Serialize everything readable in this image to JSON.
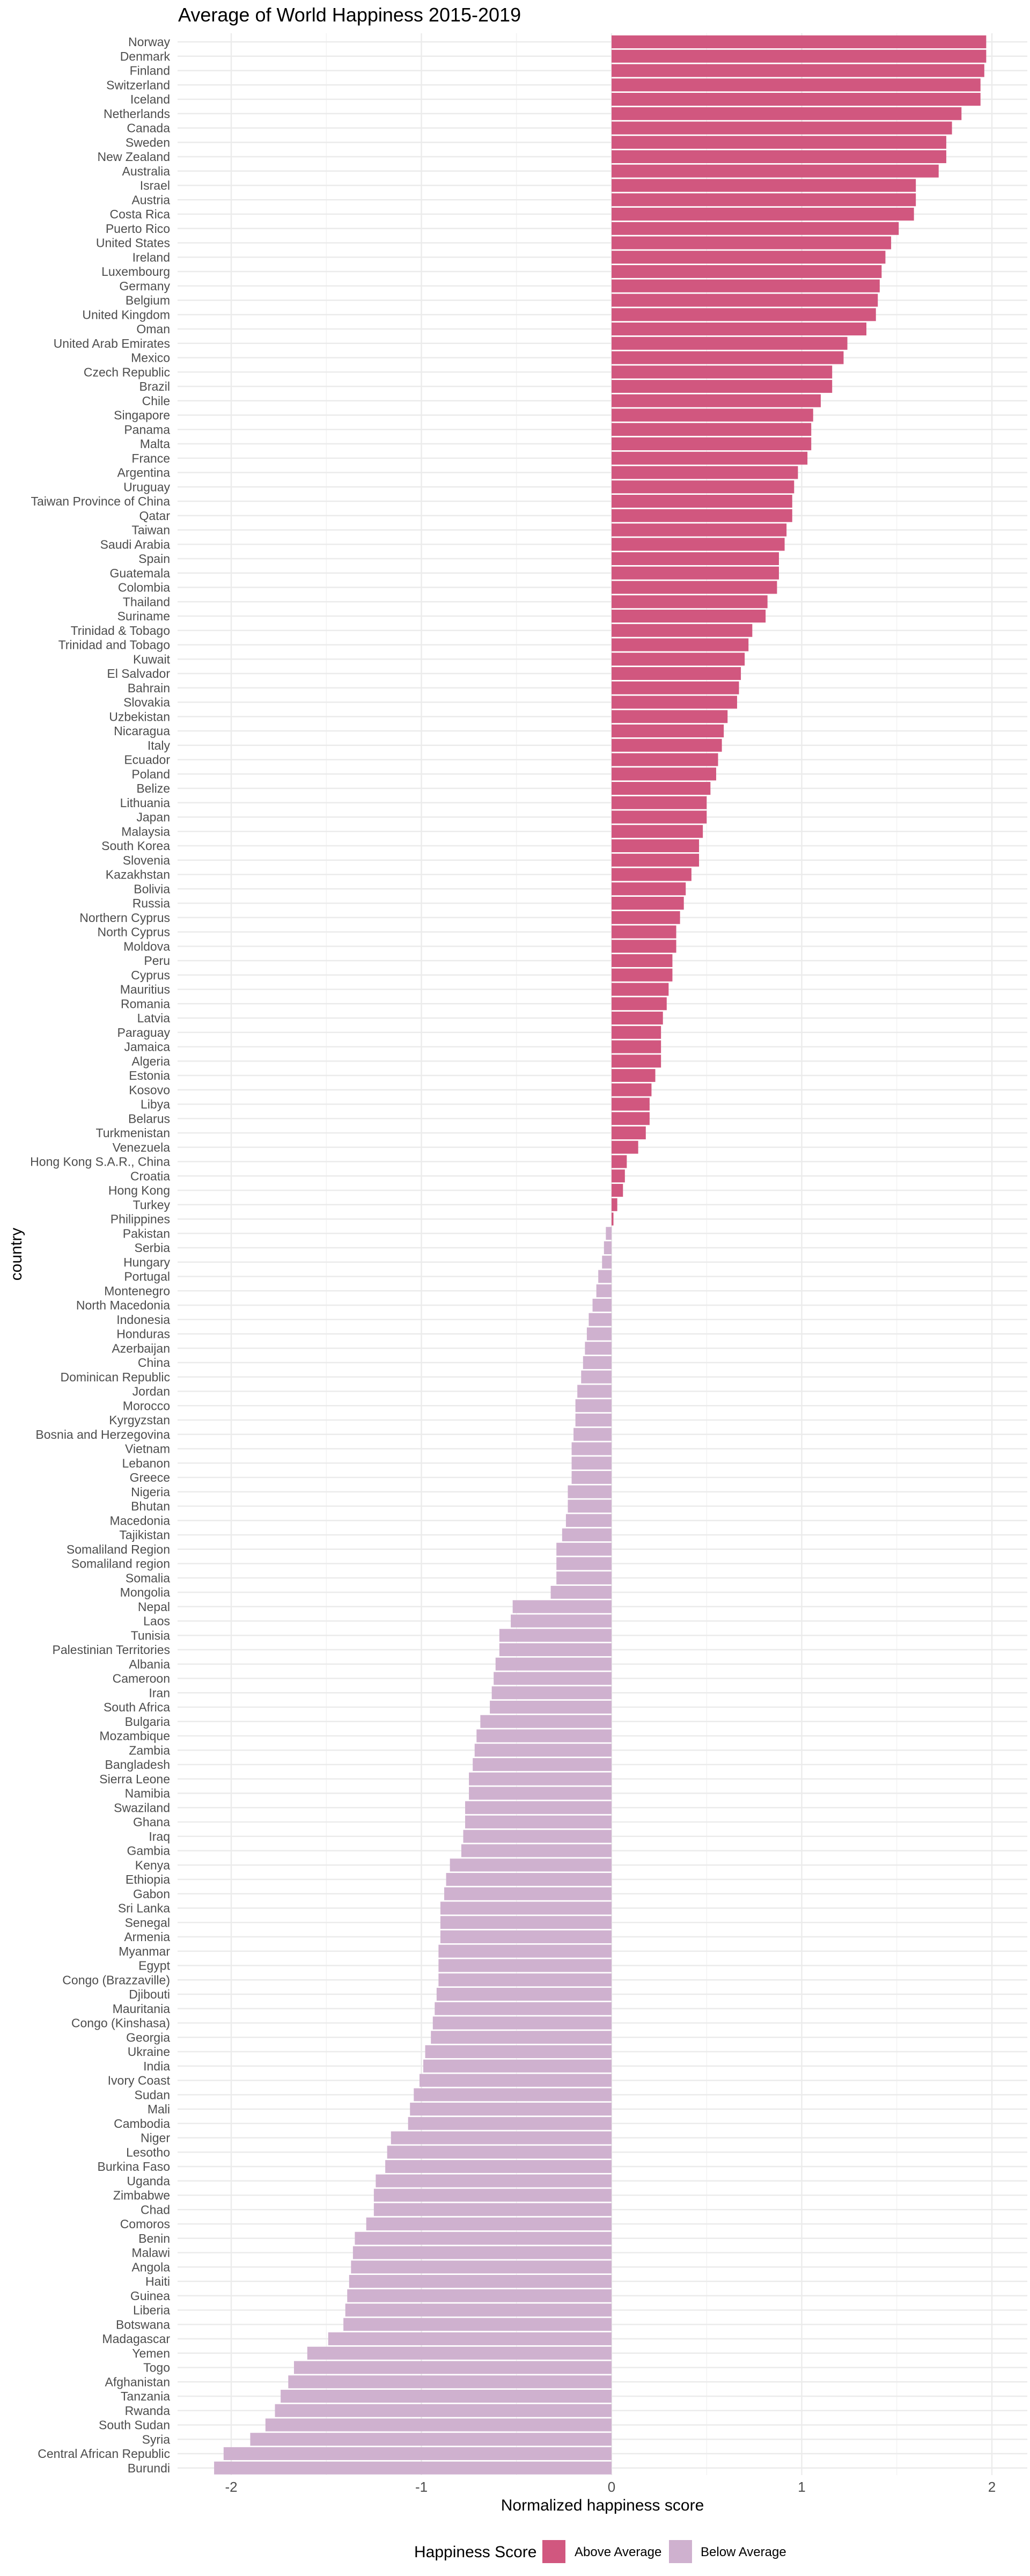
{
  "chart_data": {
    "type": "bar",
    "orientation": "horizontal",
    "title": "Average of World Happiness 2015-2019",
    "xlabel": "Normalized happiness score",
    "ylabel": "country",
    "xlim": [
      -2.28,
      2.19
    ],
    "xticks": [
      -2,
      -1,
      0,
      1,
      2
    ],
    "grid": true,
    "legend": {
      "title": "Happiness Score",
      "placement": "bottom",
      "entries": [
        {
          "label": "Above Average",
          "color": "#D1577F"
        },
        {
          "label": "Below Average",
          "color": "#CFB1CF"
        }
      ]
    },
    "categories": [
      "Norway",
      "Denmark",
      "Finland",
      "Switzerland",
      "Iceland",
      "Netherlands",
      "Canada",
      "Sweden",
      "New Zealand",
      "Australia",
      "Israel",
      "Austria",
      "Costa Rica",
      "Puerto Rico",
      "United States",
      "Ireland",
      "Luxembourg",
      "Germany",
      "Belgium",
      "United Kingdom",
      "Oman",
      "United Arab Emirates",
      "Mexico",
      "Czech Republic",
      "Brazil",
      "Chile",
      "Singapore",
      "Panama",
      "Malta",
      "France",
      "Argentina",
      "Uruguay",
      "Taiwan Province of China",
      "Qatar",
      "Taiwan",
      "Saudi Arabia",
      "Spain",
      "Guatemala",
      "Colombia",
      "Thailand",
      "Suriname",
      "Trinidad & Tobago",
      "Trinidad and Tobago",
      "Kuwait",
      "El Salvador",
      "Bahrain",
      "Slovakia",
      "Uzbekistan",
      "Nicaragua",
      "Italy",
      "Ecuador",
      "Poland",
      "Belize",
      "Lithuania",
      "Japan",
      "Malaysia",
      "South Korea",
      "Slovenia",
      "Kazakhstan",
      "Bolivia",
      "Russia",
      "Northern Cyprus",
      "North Cyprus",
      "Moldova",
      "Peru",
      "Cyprus",
      "Mauritius",
      "Romania",
      "Latvia",
      "Paraguay",
      "Jamaica",
      "Algeria",
      "Estonia",
      "Kosovo",
      "Libya",
      "Belarus",
      "Turkmenistan",
      "Venezuela",
      "Hong Kong S.A.R., China",
      "Croatia",
      "Hong Kong",
      "Turkey",
      "Philippines",
      "Pakistan",
      "Serbia",
      "Hungary",
      "Portugal",
      "Montenegro",
      "North Macedonia",
      "Indonesia",
      "Honduras",
      "Azerbaijan",
      "China",
      "Dominican Republic",
      "Jordan",
      "Morocco",
      "Kyrgyzstan",
      "Bosnia and Herzegovina",
      "Vietnam",
      "Lebanon",
      "Greece",
      "Nigeria",
      "Bhutan",
      "Macedonia",
      "Tajikistan",
      "Somaliland Region",
      "Somaliland region",
      "Somalia",
      "Mongolia",
      "Nepal",
      "Laos",
      "Tunisia",
      "Palestinian Territories",
      "Albania",
      "Cameroon",
      "Iran",
      "South Africa",
      "Bulgaria",
      "Mozambique",
      "Zambia",
      "Bangladesh",
      "Sierra Leone",
      "Namibia",
      "Swaziland",
      "Ghana",
      "Iraq",
      "Gambia",
      "Kenya",
      "Ethiopia",
      "Gabon",
      "Sri Lanka",
      "Senegal",
      "Armenia",
      "Myanmar",
      "Egypt",
      "Congo (Brazzaville)",
      "Djibouti",
      "Mauritania",
      "Congo (Kinshasa)",
      "Georgia",
      "Ukraine",
      "India",
      "Ivory Coast",
      "Sudan",
      "Mali",
      "Cambodia",
      "Niger",
      "Lesotho",
      "Burkina Faso",
      "Uganda",
      "Zimbabwe",
      "Chad",
      "Comoros",
      "Benin",
      "Malawi",
      "Angola",
      "Haiti",
      "Guinea",
      "Liberia",
      "Botswana",
      "Madagascar",
      "Yemen",
      "Togo",
      "Afghanistan",
      "Tanzania",
      "Rwanda",
      "South Sudan",
      "Syria",
      "Central African Republic",
      "Burundi"
    ],
    "values": [
      1.97,
      1.97,
      1.96,
      1.94,
      1.94,
      1.84,
      1.79,
      1.76,
      1.76,
      1.72,
      1.6,
      1.6,
      1.59,
      1.51,
      1.47,
      1.44,
      1.42,
      1.41,
      1.4,
      1.39,
      1.34,
      1.24,
      1.22,
      1.16,
      1.16,
      1.1,
      1.06,
      1.05,
      1.05,
      1.03,
      0.98,
      0.96,
      0.95,
      0.95,
      0.92,
      0.91,
      0.88,
      0.88,
      0.87,
      0.82,
      0.81,
      0.74,
      0.72,
      0.7,
      0.68,
      0.67,
      0.66,
      0.61,
      0.59,
      0.58,
      0.56,
      0.55,
      0.52,
      0.5,
      0.5,
      0.48,
      0.46,
      0.46,
      0.42,
      0.39,
      0.38,
      0.36,
      0.34,
      0.34,
      0.32,
      0.32,
      0.3,
      0.29,
      0.27,
      0.26,
      0.26,
      0.26,
      0.23,
      0.21,
      0.2,
      0.2,
      0.18,
      0.14,
      0.08,
      0.07,
      0.06,
      0.03,
      0.01,
      -0.03,
      -0.04,
      -0.05,
      -0.07,
      -0.08,
      -0.1,
      -0.12,
      -0.13,
      -0.14,
      -0.15,
      -0.16,
      -0.18,
      -0.19,
      -0.19,
      -0.2,
      -0.21,
      -0.21,
      -0.21,
      -0.23,
      -0.23,
      -0.24,
      -0.26,
      -0.29,
      -0.29,
      -0.29,
      -0.32,
      -0.52,
      -0.53,
      -0.59,
      -0.59,
      -0.61,
      -0.62,
      -0.63,
      -0.64,
      -0.69,
      -0.71,
      -0.72,
      -0.73,
      -0.75,
      -0.75,
      -0.77,
      -0.77,
      -0.78,
      -0.79,
      -0.85,
      -0.87,
      -0.88,
      -0.9,
      -0.9,
      -0.9,
      -0.91,
      -0.91,
      -0.91,
      -0.92,
      -0.93,
      -0.94,
      -0.95,
      -0.98,
      -0.99,
      -1.01,
      -1.04,
      -1.06,
      -1.07,
      -1.16,
      -1.18,
      -1.19,
      -1.24,
      -1.25,
      -1.25,
      -1.29,
      -1.35,
      -1.36,
      -1.37,
      -1.38,
      -1.39,
      -1.4,
      -1.41,
      -1.49,
      -1.6,
      -1.67,
      -1.7,
      -1.74,
      -1.77,
      -1.82,
      -1.9,
      -2.04,
      -2.09
    ]
  }
}
